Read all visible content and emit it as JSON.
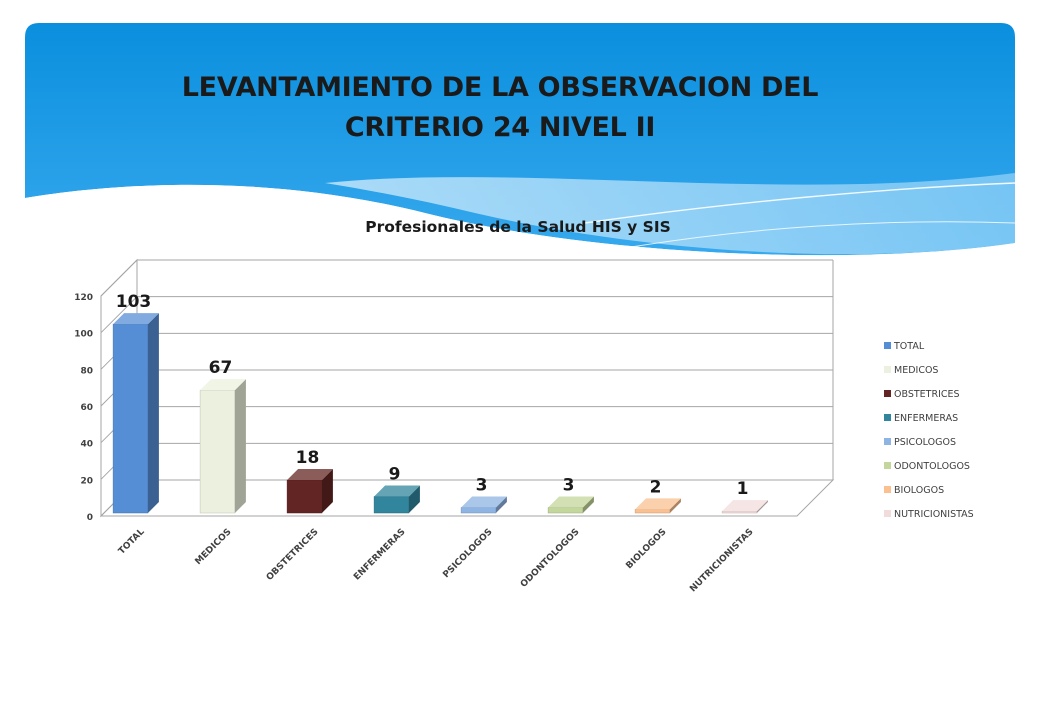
{
  "slide": {
    "title_line1": "LEVANTAMIENTO DE LA OBSERVACION DEL",
    "title_line2": "CRITERIO 24 NIVEL II",
    "colors": {
      "header_top": "#0a8fde",
      "header_bottom": "#37a9ee",
      "wave": "#bfe3fb"
    }
  },
  "chart_data": {
    "type": "bar",
    "title": "Profesionales de la Salud HIS y SIS",
    "xlabel": "",
    "ylabel": "",
    "ylim": [
      0,
      120
    ],
    "yticks": [
      0,
      20,
      40,
      60,
      80,
      100,
      120
    ],
    "categories": [
      "TOTAL",
      "MEDICOS",
      "OBSTETRICES",
      "ENFERMERAS",
      "PSICOLOGOS",
      "ODONTOLOGOS",
      "BIOLOGOS",
      "NUTRICIONISTAS"
    ],
    "values": [
      103,
      67,
      18,
      9,
      3,
      3,
      2,
      1
    ],
    "data_labels": [
      "103",
      "67",
      "18",
      "9",
      "3",
      "3",
      "2",
      "1"
    ],
    "colors": [
      "#558ed5",
      "#ebf1de",
      "#632523",
      "#31859c",
      "#8eb4e3",
      "#c3d69b",
      "#fac090",
      "#f2dcdb"
    ],
    "legend": [
      "TOTAL",
      "MEDICOS",
      "OBSTETRICES",
      "ENFERMERAS",
      "PSICOLOGOS",
      "ODONTOLOGOS",
      "BIOLOGOS",
      "NUTRICIONISTAS"
    ],
    "legend_position": "right",
    "grid": true,
    "style": "3d-columns"
  }
}
